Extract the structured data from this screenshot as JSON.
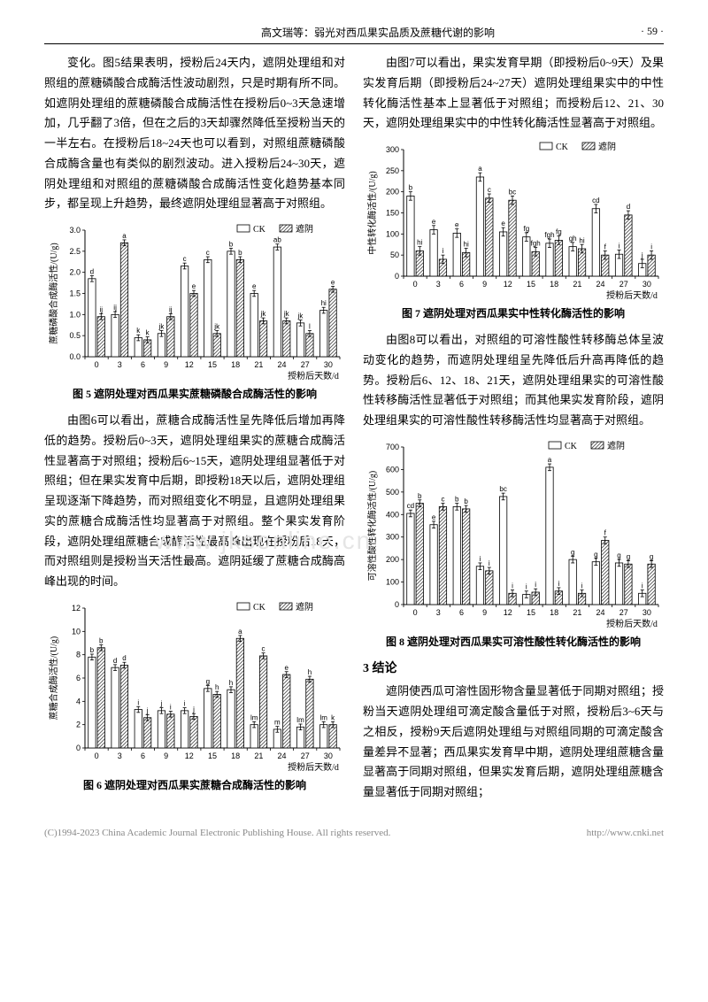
{
  "header": {
    "title_center": "高文瑞等：弱光对西瓜果实品质及蔗糖代谢的影响",
    "page_no_right": "· 59 ·"
  },
  "watermark": "www.jksonline.cn",
  "left": {
    "p1": "变化。图5结果表明，授粉后24天内，遮阴处理组和对照组的蔗糖磷酸合成酶活性波动剧烈，只是时期有所不同。如遮阴处理组的蔗糖磷酸合成酶活性在授粉后0~3天急速增加，几乎翻了3倍，但在之后的3天却骤然降低至授粉当天的一半左右。在授粉后18~24天也可以看到，对照组蔗糖磷酸合成酶含量也有类似的剧烈波动。进入授粉后24~30天，遮阴处理组和对照组的蔗糖磷酸合成酶活性变化趋势基本同步，都呈现上升趋势，最终遮阴处理组显著高于对照组。",
    "fig5_caption": "图 5  遮阴处理对西瓜果实蔗糖磷酸合成酶活性的影响",
    "p2": "由图6可以看出，蔗糖合成酶活性呈先降低后增加再降低的趋势。授粉后0~3天，遮阴处理组果实的蔗糖合成酶活性显著高于对照组；授粉后6~15天，遮阴处理组显著低于对照组；但在果实发育中后期，即授粉18天以后，遮阴处理组呈现逐渐下降趋势，而对照组变化不明显，且遮阴处理组果实的蔗糖合成酶活性均显著高于对照组。整个果实发育阶段，遮阴处理组蔗糖合成酶活性最高峰出现在授粉后18天，而对照组则是授粉当天活性最高。遮阴延缓了蔗糖合成酶高峰出现的时间。",
    "fig6_caption": "图 6  遮阴处理对西瓜果实蔗糖合成酶活性的影响"
  },
  "right": {
    "p1": "由图7可以看出，果实发育早期（即授粉后0~9天）及果实发育后期（即授粉后24~27天）遮阴处理组果实中的中性转化酶活性基本上显著低于对照组；而授粉后12、21、30天，遮阴处理组果实中的中性转化酶活性显著高于对照组。",
    "fig7_caption": "图 7  遮阴处理对西瓜果实中性转化酶活性的影响",
    "p2": "由图8可以看出，对照组的可溶性酸性转移酶总体呈波动变化的趋势，而遮阴处理组呈先降低后升高再降低的趋势。授粉后6、12、18、21天，遮阴处理组果实的可溶性酸性转移酶活性显著低于对照组；而其他果实发育阶段，遮阴处理组果实的可溶性酸性转移酶活性均显著高于对照组。",
    "fig8_caption": "图 8  遮阴处理对西瓜果实可溶性酸性转化酶活性的影响",
    "sec3_title": "3  结论",
    "p3": "遮阴使西瓜可溶性固形物含量显著低于同期对照组；授粉当天遮阴处理组可滴定酸含量低于对照，授粉后3~6天与之相反，授粉9天后遮阴处理组与对照组同期的可滴定酸含量差异不显著；西瓜果实发育早中期，遮阴处理组蔗糖含量显著高于同期对照组，但果实发育后期，遮阴处理组蔗糖含量显著低于同期对照组；"
  },
  "legend": {
    "ck": "CK",
    "shade": "遮阴"
  },
  "xlabel": "授粉后天数/d",
  "categories": [
    "0",
    "3",
    "6",
    "9",
    "12",
    "15",
    "18",
    "21",
    "24",
    "27",
    "30"
  ],
  "fig5": {
    "ylabel": "蔗糖磷酸合成酶活性/(U/g)",
    "ymax": 3.0,
    "ystep": 0.5,
    "ck": [
      1.85,
      1.0,
      0.45,
      0.55,
      2.15,
      2.3,
      2.5,
      1.5,
      2.6,
      0.8,
      1.1
    ],
    "sh": [
      0.95,
      2.7,
      0.4,
      0.95,
      1.5,
      0.55,
      2.3,
      0.85,
      0.85,
      0.55,
      1.6
    ],
    "ck_l": [
      "d",
      "ij",
      "k",
      "jk",
      "c",
      "c",
      "b",
      "e",
      "ab",
      "jk",
      "hi"
    ],
    "sh_l": [
      "ij",
      "a",
      "k",
      "ij",
      "e",
      "jk",
      "b",
      "jk",
      "jk",
      "l",
      "e"
    ],
    "err": 0.07
  },
  "fig6": {
    "ylabel": "蔗糖合成酶活性/(U/g)",
    "ymax": 12,
    "ystep": 2,
    "ck": [
      7.8,
      6.9,
      3.3,
      3.2,
      3.2,
      5.1,
      5.0,
      2.0,
      1.6,
      1.8,
      2.0
    ],
    "sh": [
      8.6,
      7.1,
      2.6,
      2.9,
      2.7,
      4.6,
      9.4,
      7.9,
      6.3,
      5.9,
      2.0
    ],
    "ck_l": [
      "b",
      "d",
      "i",
      "j",
      "i",
      "g",
      "h",
      "lm",
      "m",
      "lm",
      "lm"
    ],
    "sh_l": [
      "b",
      "d",
      "j",
      "i",
      "j",
      "h",
      "a",
      "c",
      "e",
      "h",
      "k"
    ],
    "err": 0.25
  },
  "fig7": {
    "ylabel": "中性转化酶活性/(U/g)",
    "ymax": 300,
    "ystep": 50,
    "ck": [
      190,
      110,
      102,
      235,
      105,
      93,
      78,
      70,
      160,
      52,
      30
    ],
    "sh": [
      60,
      40,
      56,
      185,
      180,
      58,
      85,
      65,
      50,
      145,
      50
    ],
    "ck_l": [
      "b",
      "e",
      "e",
      "a",
      "e",
      "fg",
      "fgh",
      "gh",
      "cd",
      "i",
      "j"
    ],
    "sh_l": [
      "hi",
      "i",
      "hi",
      "c",
      "bc",
      "fgh",
      "fg",
      "hi",
      "f",
      "d",
      "i"
    ],
    "err": 10
  },
  "fig8": {
    "ylabel": "可溶性酸性转化酶活性/(U/g)",
    "ymax": 700,
    "ystep": 100,
    "ck": [
      405,
      355,
      435,
      170,
      480,
      45,
      610,
      200,
      190,
      185,
      50
    ],
    "sh": [
      450,
      435,
      425,
      150,
      50,
      55,
      60,
      50,
      285,
      180,
      180
    ],
    "ck_l": [
      "cd",
      "e",
      "b",
      "i",
      "bc",
      "i",
      "a",
      "g",
      "g",
      "g",
      "i"
    ],
    "sh_l": [
      "b",
      "c",
      "b",
      "i",
      "i",
      "i",
      "i",
      "i",
      "f",
      "g",
      "g"
    ],
    "err": 15
  },
  "footer": {
    "left": "(C)1994-2023 China Academic Journal Electronic Publishing House. All rights reserved.",
    "right": "http://www.cnki.net"
  }
}
